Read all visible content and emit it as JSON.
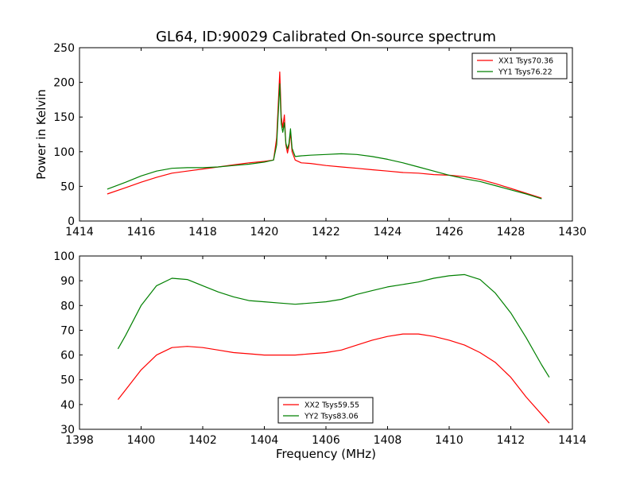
{
  "title": "GL64, ID:90029 Calibrated On-source spectrum",
  "chart_data": [
    {
      "type": "line",
      "xlabel": "",
      "ylabel": "Power in Kelvin",
      "xlim": [
        1414,
        1430
      ],
      "ylim": [
        0,
        250
      ],
      "xticks": [
        1414,
        1416,
        1418,
        1420,
        1422,
        1424,
        1426,
        1428,
        1430
      ],
      "yticks": [
        0,
        50,
        100,
        150,
        200,
        250
      ],
      "legend": "top-right",
      "series": [
        {
          "name": "XX1 Tsys70.36",
          "color": "#ff0000",
          "x": [
            1414.9,
            1415.5,
            1416,
            1416.5,
            1417,
            1417.5,
            1418,
            1418.5,
            1419,
            1419.5,
            1420,
            1420.3,
            1420.4,
            1420.5,
            1420.55,
            1420.6,
            1420.65,
            1420.7,
            1420.75,
            1420.8,
            1420.85,
            1420.9,
            1421,
            1421.2,
            1421.5,
            1422,
            1422.5,
            1423,
            1423.5,
            1424,
            1424.5,
            1425,
            1425.5,
            1426,
            1426.5,
            1427,
            1427.5,
            1428,
            1428.5,
            1429
          ],
          "y": [
            39,
            48,
            56,
            63,
            69,
            72,
            75,
            78,
            81,
            84,
            86,
            88,
            120,
            215,
            150,
            135,
            153,
            110,
            98,
            108,
            128,
            100,
            88,
            84,
            83,
            80,
            78,
            76,
            74,
            72,
            70,
            69,
            67,
            66,
            64,
            60,
            54,
            47,
            40,
            33
          ]
        },
        {
          "name": "YY1 Tsys76.22",
          "color": "#008000",
          "x": [
            1414.9,
            1415.5,
            1416,
            1416.5,
            1417,
            1417.5,
            1418,
            1418.5,
            1419,
            1419.5,
            1420,
            1420.3,
            1420.4,
            1420.5,
            1420.55,
            1420.6,
            1420.65,
            1420.7,
            1420.75,
            1420.8,
            1420.85,
            1420.9,
            1421,
            1421.2,
            1421.5,
            1422,
            1422.5,
            1423,
            1423.5,
            1424,
            1424.5,
            1425,
            1425.5,
            1426,
            1426.5,
            1427,
            1427.5,
            1428,
            1428.5,
            1429
          ],
          "y": [
            46,
            56,
            65,
            72,
            76,
            77,
            77,
            78,
            80,
            82,
            85,
            88,
            110,
            198,
            140,
            128,
            142,
            112,
            104,
            112,
            133,
            105,
            93,
            94,
            95,
            96,
            97,
            96,
            93,
            89,
            84,
            78,
            72,
            66,
            61,
            57,
            51,
            45,
            39,
            32
          ]
        }
      ]
    },
    {
      "type": "line",
      "xlabel": "Frequency (MHz)",
      "ylabel": "",
      "xlim": [
        1398,
        1414
      ],
      "ylim": [
        30,
        100
      ],
      "xticks": [
        1398,
        1400,
        1402,
        1404,
        1406,
        1408,
        1410,
        1412,
        1414
      ],
      "yticks": [
        30,
        40,
        50,
        60,
        70,
        80,
        90,
        100
      ],
      "legend": "bottom-center",
      "series": [
        {
          "name": "XX2 Tsys59.55",
          "color": "#ff0000",
          "x": [
            1399.25,
            1399.5,
            1400,
            1400.5,
            1401,
            1401.5,
            1402,
            1402.5,
            1403,
            1403.5,
            1404,
            1404.5,
            1405,
            1405.5,
            1406,
            1406.5,
            1407,
            1407.5,
            1408,
            1408.5,
            1409,
            1409.5,
            1410,
            1410.5,
            1411,
            1411.5,
            1412,
            1412.5,
            1413,
            1413.25
          ],
          "y": [
            42,
            46,
            54,
            60,
            63,
            63.5,
            63,
            62,
            61,
            60.5,
            60,
            60,
            60,
            60.5,
            61,
            62,
            64,
            66,
            67.5,
            68.5,
            68.5,
            67.5,
            66,
            64,
            61,
            57,
            51,
            43,
            36,
            32.5
          ]
        },
        {
          "name": "YY2 Tsys83.06",
          "color": "#008000",
          "x": [
            1399.25,
            1399.5,
            1400,
            1400.5,
            1401,
            1401.5,
            1402,
            1402.5,
            1403,
            1403.5,
            1404,
            1404.5,
            1405,
            1405.5,
            1406,
            1406.5,
            1407,
            1407.5,
            1408,
            1408.5,
            1409,
            1409.5,
            1410,
            1410.5,
            1411,
            1411.5,
            1412,
            1412.5,
            1413,
            1413.25
          ],
          "y": [
            62.5,
            68,
            80,
            88,
            91,
            90.5,
            88,
            85.5,
            83.5,
            82,
            81.5,
            81,
            80.5,
            81,
            81.5,
            82.5,
            84.5,
            86,
            87.5,
            88.5,
            89.5,
            91,
            92,
            92.5,
            90.5,
            85,
            77,
            67,
            56,
            51
          ]
        }
      ]
    }
  ]
}
